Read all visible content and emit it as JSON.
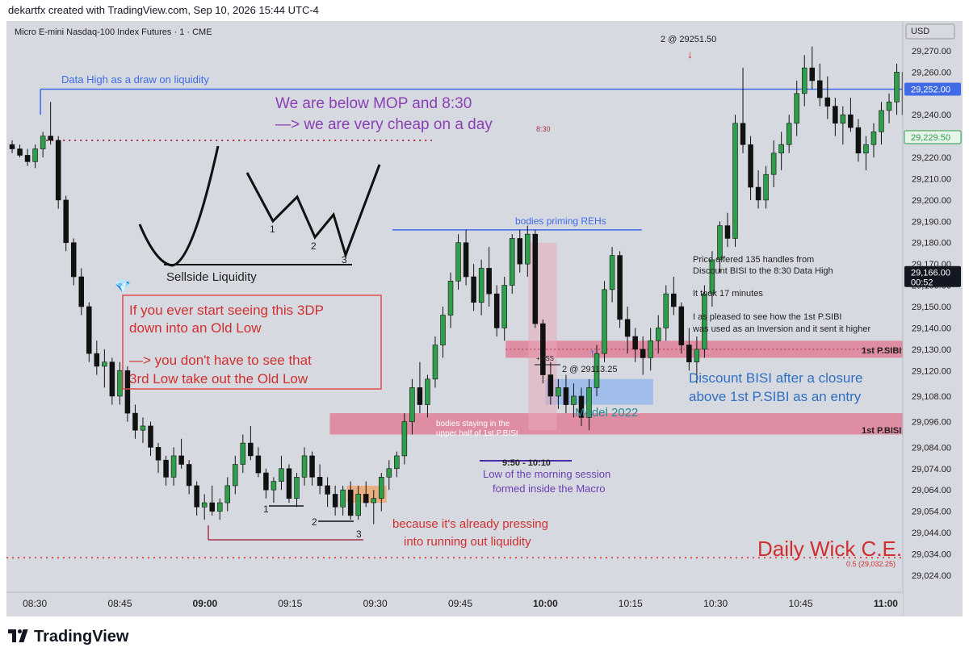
{
  "header": {
    "credit": "dekartfx created with TradingView.com, Sep 10, 2026 15:44 UTC-4"
  },
  "footer": {
    "brand": "TradingView"
  },
  "chart_data": {
    "type": "candlestick",
    "title": "Micro E-mini Nasdaq-100 Index Futures · 1 · CME",
    "currency": "USD",
    "ylim": [
      29016,
      29284
    ],
    "y_ticks": [
      29024,
      29034,
      29044,
      29054,
      29064,
      29074,
      29084,
      29096,
      29108,
      29120,
      29130,
      29140,
      29150,
      29160,
      29170,
      29180,
      29190,
      29200,
      29210,
      29220,
      29240,
      29260,
      29270
    ],
    "y_tick_labels": [
      "29,024.00",
      "29,034.00",
      "29,044.00",
      "29,054.00",
      "29,064.00",
      "29,074.00",
      "29,084.00",
      "29,096.00",
      "29,108.00",
      "29,120.00",
      "29,130.00",
      "29,140.00",
      "29,150.00",
      "29,160.00",
      "29,170.00",
      "29,180.00",
      "29,190.00",
      "29,200.00",
      "29,210.00",
      "29,220.00",
      "29,240.00",
      "29,260.00",
      "29,270.00"
    ],
    "x_range_minutes": [
      505,
      663
    ],
    "x_ticks": [
      {
        "t": 510,
        "label": "08:30",
        "bold": false
      },
      {
        "t": 525,
        "label": "08:45",
        "bold": false
      },
      {
        "t": 540,
        "label": "09:00",
        "bold": true
      },
      {
        "t": 555,
        "label": "09:15",
        "bold": false
      },
      {
        "t": 570,
        "label": "09:30",
        "bold": false
      },
      {
        "t": 585,
        "label": "09:45",
        "bold": false
      },
      {
        "t": 600,
        "label": "10:00",
        "bold": true
      },
      {
        "t": 615,
        "label": "10:15",
        "bold": false
      },
      {
        "t": 630,
        "label": "10:30",
        "bold": false
      },
      {
        "t": 645,
        "label": "10:45",
        "bold": false
      },
      {
        "t": 660,
        "label": "11:00",
        "bold": true
      }
    ],
    "price_badges": [
      {
        "label": "29,252.00",
        "price": 29252,
        "style": "blue"
      },
      {
        "label": "29,229.50",
        "price": 29229.5,
        "style": "green"
      },
      {
        "label": "29,166.00",
        "sub": "00:52",
        "price": 29166,
        "style": "dark"
      }
    ],
    "candles": [
      [
        29226,
        29228,
        29222,
        29224
      ],
      [
        29224,
        29226,
        29220,
        29221
      ],
      [
        29221,
        29224,
        29216,
        29218
      ],
      [
        29218,
        29226,
        29215,
        29224
      ],
      [
        29224,
        29232,
        29220,
        29230
      ],
      [
        29230,
        29246,
        29226,
        29228
      ],
      [
        29228,
        29230,
        29196,
        29200
      ],
      [
        29200,
        29202,
        29176,
        29180
      ],
      [
        29180,
        29182,
        29160,
        29164
      ],
      [
        29164,
        29168,
        29146,
        29150
      ],
      [
        29150,
        29152,
        29124,
        29128
      ],
      [
        29128,
        29134,
        29118,
        29122
      ],
      [
        29122,
        29130,
        29112,
        29124
      ],
      [
        29124,
        29126,
        29104,
        29108
      ],
      [
        29108,
        29124,
        29104,
        29120
      ],
      [
        29120,
        29122,
        29096,
        29100
      ],
      [
        29100,
        29104,
        29088,
        29092
      ],
      [
        29092,
        29098,
        29086,
        29094
      ],
      [
        29094,
        29096,
        29080,
        29084
      ],
      [
        29084,
        29086,
        29072,
        29078
      ],
      [
        29078,
        29080,
        29066,
        29070
      ],
      [
        29070,
        29084,
        29066,
        29080
      ],
      [
        29080,
        29088,
        29074,
        29076
      ],
      [
        29076,
        29078,
        29062,
        29066
      ],
      [
        29066,
        29068,
        29052,
        29056
      ],
      [
        29056,
        29062,
        29050,
        29058
      ],
      [
        29058,
        29066,
        29052,
        29054
      ],
      [
        29054,
        29060,
        29050,
        29058
      ],
      [
        29058,
        29070,
        29054,
        29066
      ],
      [
        29066,
        29080,
        29062,
        29076
      ],
      [
        29076,
        29090,
        29072,
        29086
      ],
      [
        29086,
        29094,
        29078,
        29080
      ],
      [
        29080,
        29084,
        29070,
        29072
      ],
      [
        29072,
        29074,
        29060,
        29064
      ],
      [
        29064,
        29070,
        29058,
        29068
      ],
      [
        29068,
        29080,
        29064,
        29074
      ],
      [
        29074,
        29076,
        29058,
        29060
      ],
      [
        29060,
        29072,
        29056,
        29070
      ],
      [
        29070,
        29084,
        29066,
        29080
      ],
      [
        29080,
        29082,
        29066,
        29070
      ],
      [
        29070,
        29076,
        29062,
        29066
      ],
      [
        29066,
        29070,
        29056,
        29062
      ],
      [
        29062,
        29066,
        29052,
        29056
      ],
      [
        29056,
        29066,
        29052,
        29064
      ],
      [
        29064,
        29068,
        29050,
        29052
      ],
      [
        29052,
        29066,
        29050,
        29062
      ],
      [
        29062,
        29068,
        29056,
        29058
      ],
      [
        29058,
        29064,
        29048,
        29060
      ],
      [
        29060,
        29072,
        29054,
        29070
      ],
      [
        29070,
        29078,
        29064,
        29074
      ],
      [
        29074,
        29082,
        29070,
        29080
      ],
      [
        29080,
        29100,
        29076,
        29096
      ],
      [
        29096,
        29116,
        29090,
        29112
      ],
      [
        29112,
        29124,
        29100,
        29104
      ],
      [
        29104,
        29118,
        29098,
        29116
      ],
      [
        29116,
        29136,
        29112,
        29132
      ],
      [
        29132,
        29150,
        29126,
        29146
      ],
      [
        29146,
        29166,
        29140,
        29162
      ],
      [
        29162,
        29184,
        29158,
        29180
      ],
      [
        29180,
        29186,
        29160,
        29164
      ],
      [
        29164,
        29170,
        29148,
        29152
      ],
      [
        29152,
        29172,
        29146,
        29168
      ],
      [
        29168,
        29178,
        29150,
        29156
      ],
      [
        29156,
        29160,
        29136,
        29140
      ],
      [
        29140,
        29164,
        29134,
        29160
      ],
      [
        29160,
        29184,
        29156,
        29182
      ],
      [
        29182,
        29186,
        29166,
        29170
      ],
      [
        29170,
        29188,
        29164,
        29184
      ],
      [
        29184,
        29186,
        29140,
        29142
      ],
      [
        29142,
        29144,
        29114,
        29118
      ],
      [
        29118,
        29124,
        29104,
        29108
      ],
      [
        29108,
        29116,
        29102,
        29112
      ],
      [
        29112,
        29118,
        29100,
        29104
      ],
      [
        29104,
        29114,
        29098,
        29108
      ],
      [
        29108,
        29112,
        29094,
        29098
      ],
      [
        29098,
        29116,
        29092,
        29112
      ],
      [
        29112,
        29132,
        29108,
        29128
      ],
      [
        29128,
        29162,
        29124,
        29158
      ],
      [
        29158,
        29178,
        29152,
        29174
      ],
      [
        29174,
        29176,
        29140,
        29144
      ],
      [
        29144,
        29150,
        29128,
        29136
      ],
      [
        29136,
        29140,
        29124,
        29130
      ],
      [
        29130,
        29136,
        29118,
        29126
      ],
      [
        29126,
        29140,
        29120,
        29134
      ],
      [
        29134,
        29146,
        29128,
        29140
      ],
      [
        29140,
        29160,
        29134,
        29156
      ],
      [
        29156,
        29164,
        29146,
        29150
      ],
      [
        29150,
        29152,
        29128,
        29132
      ],
      [
        29132,
        29140,
        29120,
        29124
      ],
      [
        29124,
        29136,
        29114,
        29130
      ],
      [
        29130,
        29160,
        29126,
        29156
      ],
      [
        29156,
        29176,
        29150,
        29172
      ],
      [
        29172,
        29190,
        29166,
        29188
      ],
      [
        29188,
        29194,
        29178,
        29182
      ],
      [
        29182,
        29240,
        29178,
        29236
      ],
      [
        29236,
        29262,
        29222,
        29226
      ],
      [
        29226,
        29230,
        29200,
        29206
      ],
      [
        29206,
        29214,
        29196,
        29200
      ],
      [
        29200,
        29216,
        29196,
        29212
      ],
      [
        29212,
        29228,
        29206,
        29222
      ],
      [
        29222,
        29232,
        29214,
        29226
      ],
      [
        29226,
        29240,
        29222,
        29236
      ],
      [
        29236,
        29256,
        29230,
        29250
      ],
      [
        29250,
        29268,
        29244,
        29262
      ],
      [
        29262,
        29272,
        29252,
        29256
      ],
      [
        29256,
        29264,
        29244,
        29248
      ],
      [
        29248,
        29258,
        29238,
        29244
      ],
      [
        29244,
        29248,
        29230,
        29236
      ],
      [
        29236,
        29244,
        29226,
        29240
      ],
      [
        29240,
        29248,
        29232,
        29234
      ],
      [
        29234,
        29238,
        29218,
        29222
      ],
      [
        29222,
        29230,
        29214,
        29226
      ],
      [
        29226,
        29236,
        29220,
        29232
      ],
      [
        29232,
        29246,
        29226,
        29242
      ],
      [
        29242,
        29250,
        29236,
        29246
      ],
      [
        29246,
        29264,
        29240,
        29260
      ],
      [
        29260,
        29264,
        29236,
        29240
      ],
      [
        29240,
        29246,
        29220,
        29226
      ],
      [
        29226,
        29232,
        29212,
        29218
      ]
    ],
    "candle_start_minute": 506,
    "candle_step_minutes": 1.356,
    "levels": [
      {
        "name": "data-high",
        "price": 29252,
        "color": "#3f6be6",
        "dash": false,
        "t0": 511,
        "t1": 663
      },
      {
        "name": "830-open",
        "price": 29228,
        "color": "#a6334a",
        "dash": true,
        "t0": 511,
        "t1": 580
      },
      {
        "name": "priming-rehs",
        "price": 29186,
        "color": "#3f6be6",
        "dash": false,
        "t0": 573,
        "t1": 617
      },
      {
        "name": "daily-wick-ce",
        "price": 29032.25,
        "color": "#e04a4a",
        "dash": true,
        "t0": 505,
        "t1": 663
      }
    ],
    "zones": [
      {
        "name": "p-sibi-zone",
        "p_top": 29134,
        "p_bot": 29126,
        "t0": 593,
        "t1": 663,
        "color": "#e0738e"
      },
      {
        "name": "p-bisi-zone",
        "p_top": 29100,
        "p_bot": 29090,
        "t0": 562,
        "t1": 663,
        "color": "#e0738e"
      },
      {
        "name": "discount-bisi-zone",
        "p_top": 29116,
        "p_bot": 29104,
        "t0": 600,
        "t1": 619,
        "color": "#8fb4ef"
      },
      {
        "name": "macro-shade",
        "p_top": 29180,
        "p_bot": 29092,
        "t0": 597,
        "t1": 602,
        "color": "#e8a9b6"
      },
      {
        "name": "orange-zone",
        "p_top": 29066,
        "p_bot": 29058,
        "t0": 565,
        "t1": 572,
        "color": "#f0a060"
      }
    ],
    "annotations": {
      "data_high": "Data High as a draw on liquidity",
      "mop_line1": "We are below MOP and 8:30",
      "mop_line2": "—> we are very cheap on a day",
      "open_830": "8:30",
      "sellside": "Sellside Liquidity",
      "diamond": "💎",
      "box_line1": "If you ever start seeing this 3DP",
      "box_line2": "down into an Old Low",
      "box_line3": "—> you don't have to see that",
      "box_line4": "3rd Low take out the Old Low",
      "priming": "bodies priming REHs",
      "offered_line1": "Price offered 135 handles from",
      "offered_line2": "Discount BISI to the 8:30 Data High",
      "minutes": "It took 17 minutes",
      "inversion_line1": "I as pleased to see how the 1st P.SIBI",
      "inversion_line2": "was used as an Inversion and it sent it higher",
      "p_sibi": "1st P.SIBI",
      "p_bisi": "1st P.BISI",
      "discount_line1": "Discount BISI after a closure",
      "discount_line2": "above 1st P.SIBI as an entry",
      "model": "Model 2022",
      "bodies_line1": "bodies staying in the",
      "bodies_line2": "upper half of 1st P.BISI",
      "mss": "+MSS",
      "entry_price": "2 @ 29113.25",
      "macro_time": "9:50 - 10:10",
      "low_line1": "Low of the morning session",
      "low_line2": "formed inside the Macro",
      "pressing_line1": "because it's already pressing",
      "pressing_line2": "into running out liquidity",
      "daily_wick": "Daily Wick C.E.",
      "ce_label": "0.5 (29,032.25)",
      "exit_price": "2 @ 29251.50",
      "n1": "1",
      "n2": "2",
      "n3": "3",
      "m1": "1",
      "m2": "2",
      "m3": "3"
    },
    "colors": {
      "up": "#2e9e4a",
      "down": "#111111",
      "bg": "#d6d9e0",
      "axis_text": "#222222"
    }
  }
}
